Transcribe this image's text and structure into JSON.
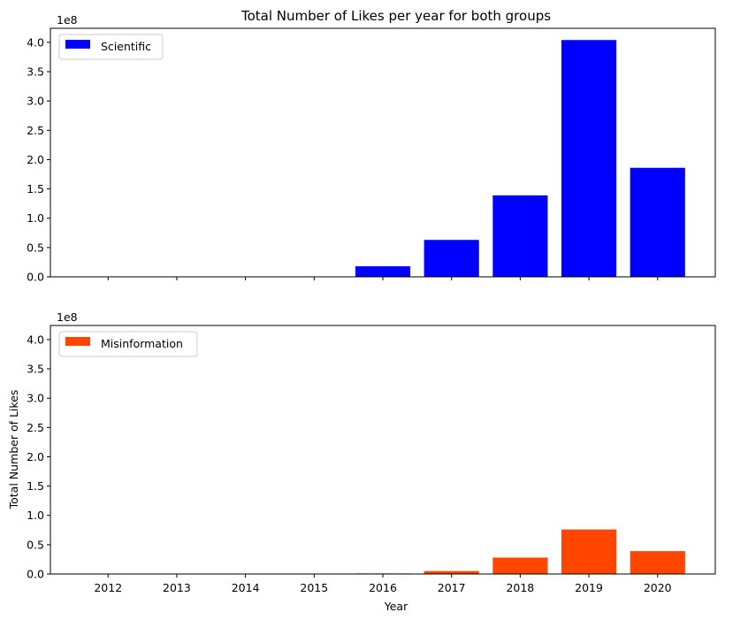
{
  "chart_data": [
    {
      "type": "bar",
      "title": "Total Number of Likes per year for both groups",
      "xlabel": "",
      "ylabel": "",
      "offset_label": "1e8",
      "categories": [
        "2012",
        "2013",
        "2014",
        "2015",
        "2016",
        "2017",
        "2018",
        "2019",
        "2020"
      ],
      "series": [
        {
          "name": "Scientific",
          "color": "#0000ff",
          "values": [
            0,
            0,
            0,
            0,
            0.18,
            0.63,
            1.39,
            4.04,
            1.86
          ]
        }
      ],
      "yticks": [
        "0.0",
        "0.5",
        "1.0",
        "1.5",
        "2.0",
        "2.5",
        "3.0",
        "3.5",
        "4.0"
      ],
      "ylim": [
        0,
        4.24
      ],
      "legend": "top-left",
      "grid": false,
      "show_xtick_labels": false
    },
    {
      "type": "bar",
      "title": "",
      "xlabel": "Year",
      "ylabel": "Total Number of Likes",
      "offset_label": "1e8",
      "categories": [
        "2012",
        "2013",
        "2014",
        "2015",
        "2016",
        "2017",
        "2018",
        "2019",
        "2020"
      ],
      "series": [
        {
          "name": "Misinformation",
          "color": "#ff4500",
          "values": [
            0,
            0,
            0,
            0,
            0.01,
            0.05,
            0.28,
            0.76,
            0.39
          ]
        }
      ],
      "yticks": [
        "0.0",
        "0.5",
        "1.0",
        "1.5",
        "2.0",
        "2.5",
        "3.0",
        "3.5",
        "4.0"
      ],
      "ylim": [
        0,
        4.24
      ],
      "legend": "top-left",
      "grid": false,
      "show_xtick_labels": true
    }
  ]
}
